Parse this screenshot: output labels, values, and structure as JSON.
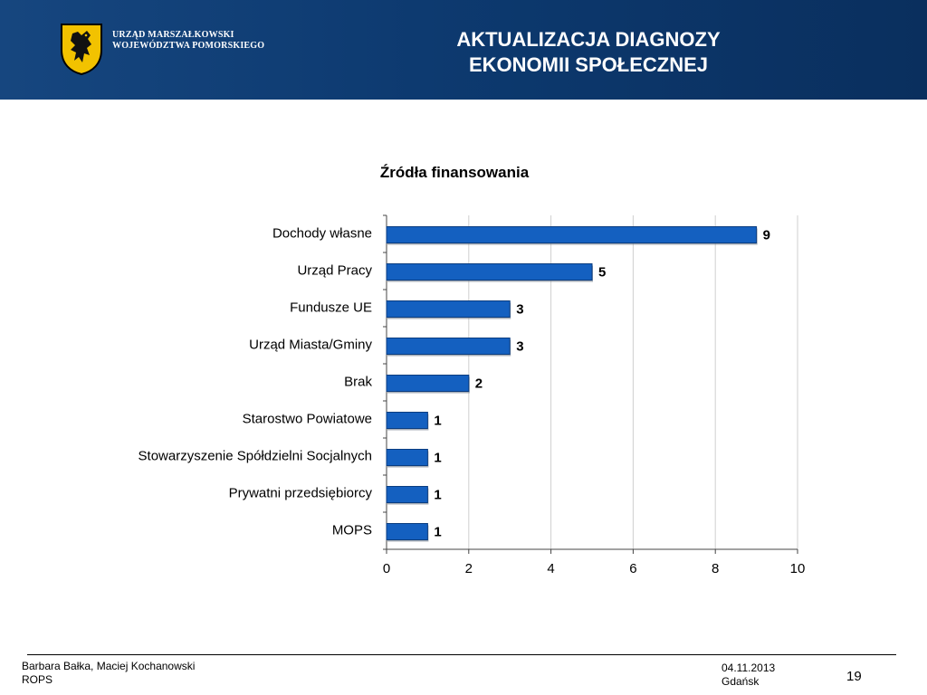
{
  "header": {
    "org_line1": "URZĄD MARSZAŁKOWSKI",
    "org_line2": "WOJEWÓDZTWA POMORSKIEGO",
    "title_line1": "AKTUALIZACJA DIAGNOZY",
    "title_line2": "EKONOMII SPOŁECZNEJ",
    "logo_icon": "griffin-coat-of-arms-icon",
    "background_color": "#0d3a70"
  },
  "chart_data": {
    "type": "bar",
    "orientation": "horizontal",
    "title": "Źródła finansowania",
    "categories": [
      "Dochody własne",
      "Urząd Pracy",
      "Fundusze UE",
      "Urząd Miasta/Gminy",
      "Brak",
      "Starostwo Powiatowe",
      "Stowarzyszenie Spółdzielni Socjalnych",
      "Prywatni przedsiębiorcy",
      "MOPS"
    ],
    "values": [
      9,
      5,
      3,
      3,
      2,
      1,
      1,
      1,
      1
    ],
    "xlim": [
      0,
      10
    ],
    "x_ticks": [
      0,
      2,
      4,
      6,
      8,
      10
    ],
    "grid": true,
    "data_labels": true,
    "bar_color": "#1460c0"
  },
  "footer": {
    "authors": "Barbara Bałka, Maciej Kochanowski",
    "org": "ROPS",
    "date": "04.11.2013",
    "city": "Gdańsk",
    "page": "19"
  }
}
